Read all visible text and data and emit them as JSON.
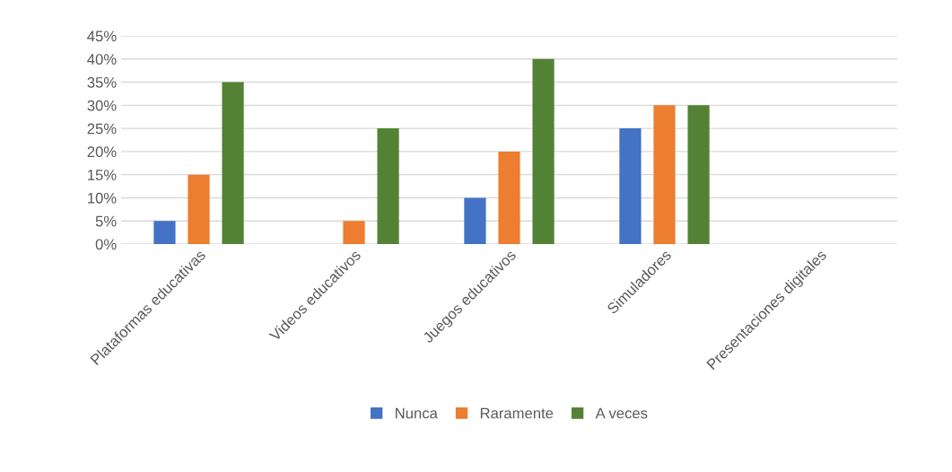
{
  "chart_data": {
    "type": "bar",
    "categories": [
      "Plataformas educativas",
      "Videos educativos",
      "Juegos educativos",
      "Simuladores",
      "Presentaciones digitales"
    ],
    "series": [
      {
        "name": "Nunca",
        "color": "#4472c4",
        "values": [
          5,
          0,
          10,
          25,
          0
        ]
      },
      {
        "name": "Raramente",
        "color": "#ed7d31",
        "values": [
          15,
          5,
          20,
          30,
          0
        ]
      },
      {
        "name": "A veces",
        "color": "#548235",
        "values": [
          35,
          25,
          40,
          30,
          0
        ]
      }
    ],
    "ylim": [
      0,
      45
    ],
    "yticks": [
      {
        "value": 0,
        "label": "0%"
      },
      {
        "value": 5,
        "label": "5%"
      },
      {
        "value": 10,
        "label": "10%"
      },
      {
        "value": 15,
        "label": "15%"
      },
      {
        "value": 20,
        "label": "20%"
      },
      {
        "value": 25,
        "label": "25%"
      },
      {
        "value": 30,
        "label": "30%"
      },
      {
        "value": 35,
        "label": "35%"
      },
      {
        "value": 40,
        "label": "40%"
      },
      {
        "value": 45,
        "label": "45%"
      }
    ],
    "grid": "y",
    "legend": "bottom"
  }
}
